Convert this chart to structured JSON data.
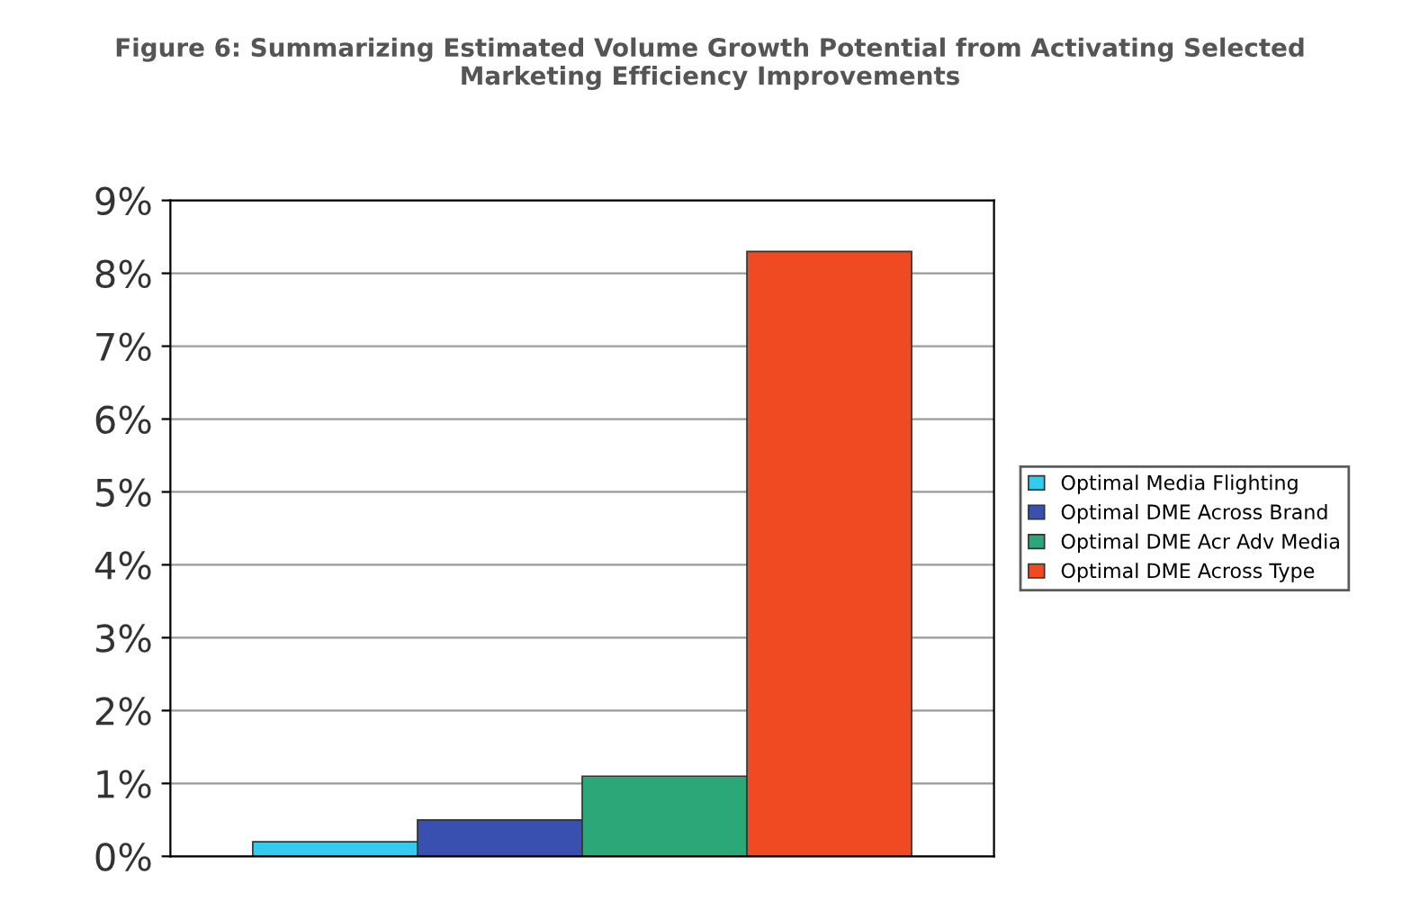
{
  "chart_data": {
    "type": "bar",
    "title": "Figure 6: Summarizing Estimated Volume Growth Potential from Activating Selected\nMarketing Efficiency Improvements",
    "categories": [
      null
    ],
    "series": [
      {
        "name": "Optimal Media Flighting",
        "color": "#33ccee",
        "values": [
          0.2
        ]
      },
      {
        "name": "Optimal DME Across Brand",
        "color": "#3a50b0",
        "values": [
          0.5
        ]
      },
      {
        "name": "Optimal DME Acr Adv Media",
        "color": "#2aa878",
        "values": [
          1.1
        ]
      },
      {
        "name": "Optimal DME Across Type",
        "color": "#f04a22",
        "values": [
          8.3
        ]
      }
    ],
    "ylim": [
      0,
      9
    ],
    "yticks": [
      {
        "value": 0,
        "label": "0%"
      },
      {
        "value": 1,
        "label": "1%"
      },
      {
        "value": 2,
        "label": "2%"
      },
      {
        "value": 3,
        "label": "3%"
      },
      {
        "value": 4,
        "label": "4%"
      },
      {
        "value": 5,
        "label": "5%"
      },
      {
        "value": 6,
        "label": "6%"
      },
      {
        "value": 7,
        "label": "7%"
      },
      {
        "value": 8,
        "label": "8%"
      },
      {
        "value": 9,
        "label": "9%"
      }
    ],
    "grid": "y",
    "legend": "right"
  }
}
